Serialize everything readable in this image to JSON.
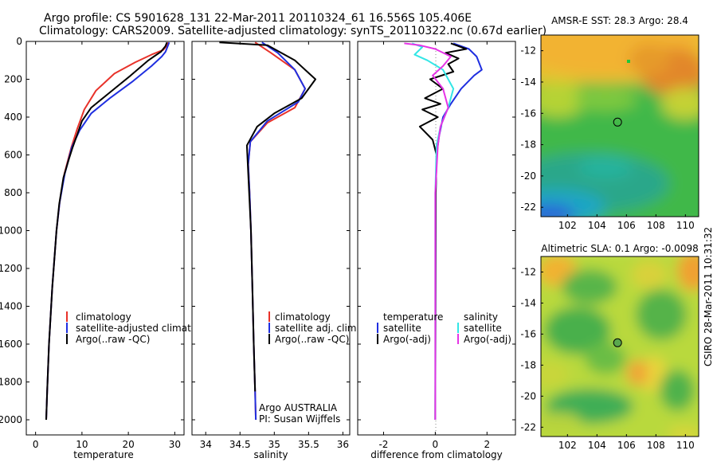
{
  "header": {
    "line1": "Argo profile: CS 5901628_131 22-Mar-2011 20110324_61 16.556S 105.406E",
    "line2": "Climatology: CARS2009. Satellite-adjusted climatology: synTS_20110322.nc (0.67d earlier)"
  },
  "side_label": "CSIRO 28-Mar-2011 10:31:32",
  "colors": {
    "climatology": "#e8322a",
    "satellite": "#1f2fe0",
    "argo": "#000000",
    "sat_salinity": "#33e6e6",
    "argo_salinity": "#e633e6"
  },
  "chart_data": [
    {
      "type": "line",
      "xlabel": "temperature",
      "ylabel": "",
      "xlim": [
        -2,
        32
      ],
      "ylim": [
        2080,
        0
      ],
      "y_reversed": true,
      "xticks": [
        "0",
        "10",
        "20",
        "30"
      ],
      "yticks": [
        "0",
        "200",
        "400",
        "600",
        "800",
        "1000",
        "1200",
        "1400",
        "1600",
        "1800",
        "2000"
      ],
      "legend": [
        "climatology",
        "satellite-adjusted climatology",
        "Argo(..raw -QC)"
      ],
      "legend_location": "lower-right",
      "series": [
        {
          "name": "climatology",
          "color": "climatology",
          "x": [
            28.6,
            28.4,
            27.5,
            25,
            21.5,
            17,
            13,
            10.5,
            9,
            7.7,
            6.2,
            5.2,
            4.5,
            3.6,
            2.9,
            2.5,
            2.3
          ],
          "y": [
            5,
            20,
            45,
            70,
            110,
            170,
            260,
            360,
            460,
            560,
            700,
            850,
            1000,
            1300,
            1600,
            1850,
            2000
          ]
        },
        {
          "name": "satellite-adjusted climatology",
          "color": "satellite",
          "x": [
            28.8,
            28.5,
            28,
            27.2,
            25,
            21,
            16,
            12,
            9.5,
            7.8,
            6.3,
            5.2,
            4.5,
            3.6,
            2.9,
            2.5,
            2.3
          ],
          "y": [
            5,
            25,
            55,
            80,
            130,
            210,
            300,
            380,
            470,
            560,
            700,
            850,
            1000,
            1300,
            1600,
            1850,
            2000
          ]
        },
        {
          "name": "Argo(..raw -QC)",
          "color": "argo",
          "x": [
            28.3,
            28,
            27,
            25.5,
            24.3,
            20.5,
            16,
            12,
            10,
            9,
            8,
            7.2,
            6,
            5.1,
            4.5,
            3.6,
            2.9,
            2.5,
            2.3
          ],
          "y": [
            5,
            25,
            55,
            80,
            100,
            180,
            270,
            350,
            420,
            490,
            560,
            620,
            720,
            860,
            1000,
            1300,
            1600,
            1850,
            2000
          ]
        }
      ]
    },
    {
      "type": "line",
      "xlabel": "salinity",
      "ylabel": "",
      "xlim": [
        33.8,
        36.1
      ],
      "ylim": [
        2080,
        0
      ],
      "y_reversed": true,
      "xticks": [
        "34",
        "34.5",
        "35",
        "35.5",
        "36"
      ],
      "legend": [
        "climatology",
        "satellite adj. clim.",
        "Argo(..raw -QC)"
      ],
      "legend_location": "lower-right",
      "annotations": [
        "Argo AUSTRALIA",
        "PI: Susan Wijffels"
      ],
      "series": [
        {
          "name": "climatology",
          "color": "climatology",
          "x": [
            34.72,
            34.95,
            35.3,
            35.45,
            35.3,
            34.9,
            34.65,
            34.62,
            34.64,
            34.66,
            34.68,
            34.7,
            34.72,
            34.73
          ],
          "y": [
            5,
            60,
            150,
            250,
            350,
            430,
            530,
            650,
            800,
            1000,
            1300,
            1600,
            1850,
            2000
          ]
        },
        {
          "name": "satellite adj. clim.",
          "color": "satellite",
          "x": [
            34.82,
            35.05,
            35.3,
            35.45,
            35.35,
            34.9,
            34.65,
            34.62,
            34.64,
            34.66,
            34.68,
            34.7,
            34.72,
            34.73
          ],
          "y": [
            5,
            60,
            150,
            250,
            320,
            420,
            530,
            650,
            800,
            1000,
            1300,
            1600,
            1850,
            2000
          ]
        },
        {
          "name": "Argo(..raw -QC)",
          "color": "argo",
          "x": [
            34.2,
            34.9,
            35.1,
            35.3,
            35.45,
            35.6,
            35.4,
            35.0,
            34.75,
            34.6,
            34.62,
            34.66,
            34.68,
            34.7,
            34.72
          ],
          "y": [
            5,
            20,
            60,
            100,
            150,
            200,
            300,
            380,
            450,
            550,
            700,
            1000,
            1300,
            1600,
            1850
          ]
        }
      ]
    },
    {
      "type": "line",
      "xlabel": "difference from climatology",
      "ylabel": "",
      "xlim": [
        -3,
        3.1
      ],
      "ylim": [
        2080,
        0
      ],
      "y_reversed": true,
      "xticks": [
        "-2",
        "0",
        "2"
      ],
      "legend": [
        "temperature",
        "satellite",
        "Argo(-adj)",
        "salinity",
        "satellite",
        "Argo(-adj)"
      ],
      "legend_location": "lower-center",
      "series": [
        {
          "name": "satellite",
          "color": "satellite",
          "x": [
            0.7,
            1.3,
            1.6,
            1.8,
            1.5,
            1.0,
            0.6,
            0.3,
            0.15,
            0.05,
            0.02,
            0.01,
            0
          ],
          "y": [
            10,
            40,
            80,
            150,
            180,
            250,
            330,
            400,
            500,
            600,
            800,
            1200,
            2000
          ]
        },
        {
          "name": "Argo(-adj)",
          "color": "argo",
          "x": [
            0.6,
            1.2,
            0.4,
            0.9,
            0.5,
            0.7,
            -0.2,
            0.3,
            -0.4,
            0.2,
            -0.5,
            0.1,
            -0.6,
            -0.1,
            0.05,
            0.02,
            0
          ],
          "y": [
            10,
            40,
            60,
            90,
            120,
            160,
            200,
            250,
            300,
            330,
            360,
            400,
            450,
            520,
            600,
            800,
            2000
          ]
        },
        {
          "name": "satellite",
          "color": "sat_salinity",
          "x": [
            -0.9,
            -0.5,
            -0.8,
            -0.3,
            0.3,
            0.7,
            0.5,
            0.2,
            0.05,
            0,
            0
          ],
          "y": [
            10,
            30,
            70,
            100,
            150,
            250,
            350,
            450,
            550,
            800,
            2000
          ]
        },
        {
          "name": "Argo(-adj)",
          "color": "argo_salinity",
          "x": [
            -1.2,
            -0.6,
            0,
            0.6,
            0.3,
            -0.1,
            0.3,
            0.5,
            0.2,
            0.1,
            0,
            0
          ],
          "y": [
            10,
            20,
            40,
            80,
            130,
            180,
            250,
            350,
            450,
            550,
            800,
            2000
          ]
        }
      ]
    },
    {
      "type": "heatmap",
      "title": "AMSR-E SST: 28.3 Argo: 28.4",
      "xlim": [
        100.2,
        110.9
      ],
      "ylim": [
        -22.6,
        -11
      ],
      "xticks": [
        "102",
        "104",
        "106",
        "108",
        "110"
      ],
      "yticks": [
        "-12",
        "-14",
        "-16",
        "-18",
        "-20",
        "-22"
      ],
      "marker": {
        "lon": 105.4,
        "lat": -16.56
      }
    },
    {
      "type": "heatmap",
      "title": "Altimetric SLA: 0.1 Argo: -0.0098",
      "xlim": [
        100.2,
        110.9
      ],
      "ylim": [
        -22.6,
        -11
      ],
      "xticks": [
        "102",
        "104",
        "106",
        "108",
        "110"
      ],
      "yticks": [
        "-12",
        "-14",
        "-16",
        "-18",
        "-20",
        "-22"
      ],
      "marker": {
        "lon": 105.4,
        "lat": -16.56
      }
    }
  ]
}
